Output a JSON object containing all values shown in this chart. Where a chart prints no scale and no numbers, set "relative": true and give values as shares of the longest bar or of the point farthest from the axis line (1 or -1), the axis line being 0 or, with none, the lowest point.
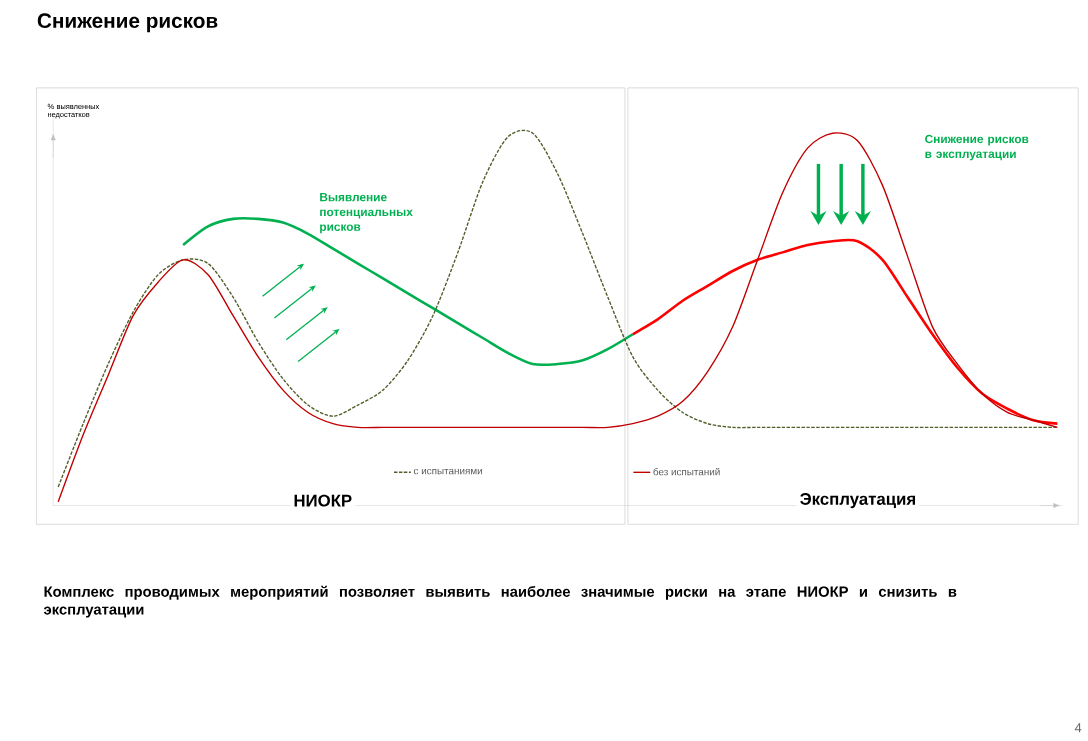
{
  "chart_data": {
    "type": "line",
    "title": "Снижение рисков",
    "ylabel": "% выявленных недостатков",
    "relative": true,
    "legend": "bottom",
    "categories": [
      null,
      null,
      null,
      null,
      null,
      null,
      null,
      null,
      null,
      null,
      null,
      null,
      null,
      null,
      null,
      null,
      null,
      null,
      null,
      null,
      null,
      null,
      null,
      null,
      null,
      null,
      null,
      null,
      null,
      null,
      null,
      null,
      null,
      null,
      null,
      null,
      null,
      null,
      null,
      null,
      null
    ],
    "series": [
      {
        "name": "с испытаниями",
        "color": "#4f5f2a",
        "line_style": "dashed",
        "values": [
          0.05,
          0.22,
          0.38,
          0.52,
          0.62,
          0.66,
          0.65,
          0.56,
          0.44,
          0.34,
          0.27,
          0.24,
          0.27,
          0.31,
          0.39,
          0.51,
          0.68,
          0.87,
          0.99,
          1.0,
          0.89,
          0.73,
          0.56,
          0.4,
          0.31,
          0.25,
          0.22,
          0.21,
          0.21,
          0.21,
          0.21,
          0.21,
          0.21,
          0.21,
          0.21,
          0.21,
          0.21,
          0.21,
          0.21,
          0.21,
          0.21
        ]
      },
      {
        "name": "без испытаний",
        "color": "#c00000",
        "values": [
          0.01,
          0.19,
          0.35,
          0.51,
          0.6,
          0.66,
          0.62,
          0.51,
          0.4,
          0.31,
          0.25,
          0.22,
          0.21,
          0.21,
          0.21,
          0.21,
          0.21,
          0.21,
          0.21,
          0.21,
          0.21,
          0.21,
          0.21,
          0.22,
          0.24,
          0.28,
          0.36,
          0.48,
          0.66,
          0.84,
          0.96,
          1.0,
          0.98,
          0.86,
          0.67,
          0.48,
          0.38,
          0.3,
          0.25,
          0.23,
          0.21
        ]
      },
      {
        "color": "#00b050",
        "values": [
          null,
          null,
          null,
          null,
          null,
          0.7,
          0.75,
          0.77,
          0.77,
          0.76,
          0.73,
          0.69,
          0.65,
          0.61,
          0.57,
          0.53,
          0.49,
          0.45,
          0.41,
          0.38,
          0.38,
          0.39,
          0.42,
          0.46,
          null,
          null,
          null,
          null,
          null,
          null,
          null,
          null,
          null,
          null,
          null,
          null,
          null,
          null,
          null,
          null,
          null
        ]
      },
      {
        "color": "#ff0000",
        "values": [
          null,
          null,
          null,
          null,
          null,
          null,
          null,
          null,
          null,
          null,
          null,
          null,
          null,
          null,
          null,
          null,
          null,
          null,
          null,
          null,
          null,
          null,
          null,
          0.46,
          0.5,
          0.55,
          0.59,
          0.63,
          0.66,
          0.68,
          0.7,
          0.71,
          0.71,
          0.66,
          0.56,
          0.46,
          0.37,
          0.3,
          0.26,
          0.23,
          0.22
        ]
      }
    ],
    "annotations": [
      "Выявление потенциальных рисков",
      "Снижение рисков в эксплуатации",
      "НИОКР",
      "Эксплуатация",
      "Комплекс проводимых мероприятий позволяет выявить наиболее значимые риски на этапе НИОКР и снизить в эксплуатации",
      "4"
    ]
  }
}
